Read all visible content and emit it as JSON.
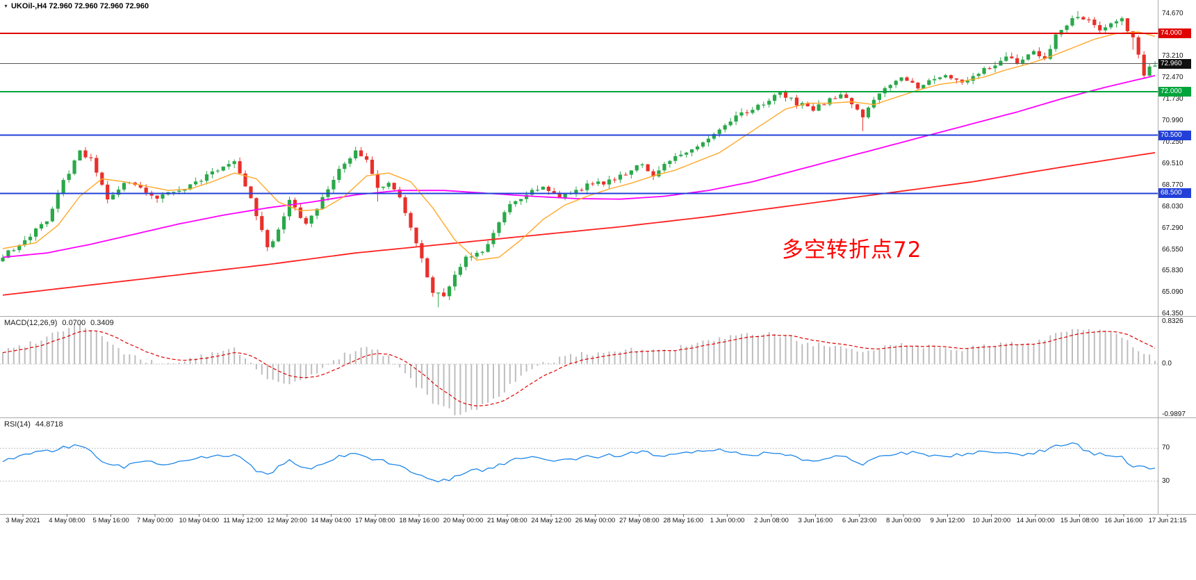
{
  "header": {
    "dropdown_icon": "chevron-down-icon",
    "title": "UKOil-,H4 72.960 72.960 72.960 72.960"
  },
  "annotation": {
    "text": "多空转折点72",
    "color": "#FF0000"
  },
  "time_axis": {
    "labels": [
      "3 May 2021",
      "4 May 08:00",
      "5 May 16:00",
      "7 May 00:00",
      "10 May 04:00",
      "11 May 12:00",
      "12 May 20:00",
      "14 May 04:00",
      "17 May 08:00",
      "18 May 16:00",
      "20 May 00:00",
      "21 May 08:00",
      "24 May 12:00",
      "26 May 00:00",
      "27 May 08:00",
      "28 May 16:00",
      "1 Jun 00:00",
      "2 Jun 08:00",
      "3 Jun 16:00",
      "6 Jun 23:00",
      "8 Jun 00:00",
      "9 Jun 12:00",
      "10 Jun 20:00",
      "14 Jun 00:00",
      "15 Jun 08:00",
      "16 Jun 16:00",
      "17 Jun 21:15"
    ]
  },
  "chart_data": [
    {
      "type": "candlestick",
      "title": "UKOil-,H4",
      "bars": 210,
      "ylim": [
        64.28,
        75.15
      ],
      "up_color": "#2AA84A",
      "down_color": "#E8302A",
      "y_axis_labels": [
        "74.670",
        "73.210",
        "72.470",
        "71.730",
        "70.990",
        "70.250",
        "69.510",
        "68.770",
        "68.030",
        "67.290",
        "66.550",
        "65.830",
        "65.090",
        "64.350"
      ],
      "levels": [
        {
          "price": 74.0,
          "color": "#E00000",
          "width": 2,
          "label": "74.000",
          "badge": "#E00000"
        },
        {
          "price": 72.96,
          "color": "#555555",
          "width": 1,
          "label": "72.960",
          "badge": "#111111"
        },
        {
          "price": 72.0,
          "color": "#00A43B",
          "width": 2,
          "label": "72.000",
          "badge": "#00A43B"
        },
        {
          "price": 70.5,
          "color": "#2240D8",
          "width": 2,
          "label": "70.500",
          "badge": "#2240D8"
        },
        {
          "price": 68.5,
          "color": "#2240D8",
          "width": 2,
          "label": "68.500",
          "badge": "#2240D8"
        }
      ],
      "close_anchors": [
        [
          0,
          66.35
        ],
        [
          4,
          66.9
        ],
        [
          8,
          67.6
        ],
        [
          11,
          68.9
        ],
        [
          14,
          69.9
        ],
        [
          16,
          69.65
        ],
        [
          19,
          68.35
        ],
        [
          22,
          68.85
        ],
        [
          25,
          68.7
        ],
        [
          28,
          68.35
        ],
        [
          32,
          68.6
        ],
        [
          36,
          69.0
        ],
        [
          40,
          69.35
        ],
        [
          42,
          69.65
        ],
        [
          45,
          68.3
        ],
        [
          48,
          66.6
        ],
        [
          50,
          67.2
        ],
        [
          52,
          68.35
        ],
        [
          55,
          67.4
        ],
        [
          58,
          68.35
        ],
        [
          61,
          69.3
        ],
        [
          64,
          69.95
        ],
        [
          66,
          69.6
        ],
        [
          68,
          68.75
        ],
        [
          70,
          68.85
        ],
        [
          72,
          68.4
        ],
        [
          74,
          67.3
        ],
        [
          76,
          66.25
        ],
        [
          78,
          65.1
        ],
        [
          80,
          64.95
        ],
        [
          82,
          65.7
        ],
        [
          84,
          66.35
        ],
        [
          87,
          66.5
        ],
        [
          90,
          67.5
        ],
        [
          92,
          68.2
        ],
        [
          95,
          68.45
        ],
        [
          98,
          68.75
        ],
        [
          101,
          68.35
        ],
        [
          104,
          68.6
        ],
        [
          107,
          68.85
        ],
        [
          110,
          68.9
        ],
        [
          113,
          69.15
        ],
        [
          116,
          69.55
        ],
        [
          118,
          69.1
        ],
        [
          120,
          69.5
        ],
        [
          123,
          69.9
        ],
        [
          126,
          70.1
        ],
        [
          128,
          70.45
        ],
        [
          131,
          70.9
        ],
        [
          134,
          71.25
        ],
        [
          136,
          71.35
        ],
        [
          139,
          71.7
        ],
        [
          141,
          71.95
        ],
        [
          144,
          71.6
        ],
        [
          147,
          71.4
        ],
        [
          150,
          71.75
        ],
        [
          152,
          71.9
        ],
        [
          154,
          71.6
        ],
        [
          156,
          71.05
        ],
        [
          158,
          71.7
        ],
        [
          160,
          72.2
        ],
        [
          163,
          72.45
        ],
        [
          166,
          72.15
        ],
        [
          168,
          72.35
        ],
        [
          171,
          72.6
        ],
        [
          174,
          72.3
        ],
        [
          176,
          72.55
        ],
        [
          179,
          72.85
        ],
        [
          182,
          73.15
        ],
        [
          184,
          73.0
        ],
        [
          187,
          73.35
        ],
        [
          189,
          73.15
        ],
        [
          191,
          73.9
        ],
        [
          193,
          74.35
        ],
        [
          195,
          74.6
        ],
        [
          197,
          74.45
        ],
        [
          199,
          74.1
        ],
        [
          201,
          74.35
        ],
        [
          203,
          74.45
        ],
        [
          205,
          73.8
        ],
        [
          206,
          73.2
        ],
        [
          207,
          72.55
        ],
        [
          208,
          72.9
        ],
        [
          209,
          72.96
        ]
      ],
      "wick_events": [
        [
          68,
          -0.45
        ],
        [
          79,
          -0.35
        ],
        [
          156,
          -0.4
        ],
        [
          195,
          0.07
        ],
        [
          205,
          -0.3
        ]
      ],
      "series": [
        {
          "name": "ma-slow-line",
          "color": "#FF2020",
          "width": 1.8,
          "anchors": [
            [
              0,
              65.0
            ],
            [
              16,
              65.35
            ],
            [
              32,
              65.7
            ],
            [
              48,
              66.05
            ],
            [
              64,
              66.45
            ],
            [
              80,
              66.75
            ],
            [
              96,
              67.05
            ],
            [
              112,
              67.35
            ],
            [
              128,
              67.7
            ],
            [
              144,
              68.1
            ],
            [
              160,
              68.5
            ],
            [
              176,
              68.9
            ],
            [
              192,
              69.4
            ],
            [
              209,
              69.9
            ]
          ]
        },
        {
          "name": "ma-mid-line",
          "color": "#FF00FF",
          "width": 1.8,
          "anchors": [
            [
              0,
              66.3
            ],
            [
              8,
              66.45
            ],
            [
              16,
              66.75
            ],
            [
              24,
              67.1
            ],
            [
              32,
              67.45
            ],
            [
              40,
              67.75
            ],
            [
              48,
              68.0
            ],
            [
              56,
              68.2
            ],
            [
              64,
              68.45
            ],
            [
              72,
              68.6
            ],
            [
              80,
              68.6
            ],
            [
              88,
              68.5
            ],
            [
              96,
              68.4
            ],
            [
              104,
              68.32
            ],
            [
              112,
              68.3
            ],
            [
              120,
              68.4
            ],
            [
              128,
              68.6
            ],
            [
              136,
              68.9
            ],
            [
              144,
              69.3
            ],
            [
              152,
              69.7
            ],
            [
              160,
              70.1
            ],
            [
              168,
              70.5
            ],
            [
              176,
              70.9
            ],
            [
              184,
              71.3
            ],
            [
              192,
              71.75
            ],
            [
              200,
              72.15
            ],
            [
              209,
              72.55
            ]
          ]
        },
        {
          "name": "ma-fast-line",
          "color": "#FFA828",
          "width": 1.4,
          "anchors": [
            [
              0,
              66.6
            ],
            [
              6,
              66.8
            ],
            [
              10,
              67.4
            ],
            [
              14,
              68.4
            ],
            [
              18,
              69.0
            ],
            [
              22,
              68.9
            ],
            [
              26,
              68.75
            ],
            [
              30,
              68.6
            ],
            [
              34,
              68.65
            ],
            [
              38,
              68.9
            ],
            [
              42,
              69.2
            ],
            [
              46,
              69.0
            ],
            [
              50,
              68.2
            ],
            [
              54,
              67.9
            ],
            [
              58,
              67.95
            ],
            [
              62,
              68.4
            ],
            [
              66,
              69.1
            ],
            [
              70,
              69.2
            ],
            [
              74,
              68.9
            ],
            [
              78,
              68.0
            ],
            [
              82,
              66.9
            ],
            [
              86,
              66.2
            ],
            [
              90,
              66.3
            ],
            [
              94,
              66.9
            ],
            [
              98,
              67.6
            ],
            [
              102,
              68.1
            ],
            [
              106,
              68.4
            ],
            [
              110,
              68.65
            ],
            [
              114,
              68.85
            ],
            [
              118,
              69.1
            ],
            [
              122,
              69.3
            ],
            [
              126,
              69.6
            ],
            [
              130,
              69.9
            ],
            [
              134,
              70.4
            ],
            [
              138,
              70.9
            ],
            [
              142,
              71.4
            ],
            [
              146,
              71.6
            ],
            [
              150,
              71.6
            ],
            [
              154,
              71.65
            ],
            [
              158,
              71.55
            ],
            [
              162,
              71.8
            ],
            [
              166,
              72.05
            ],
            [
              170,
              72.25
            ],
            [
              174,
              72.35
            ],
            [
              178,
              72.5
            ],
            [
              182,
              72.75
            ],
            [
              186,
              72.95
            ],
            [
              190,
              73.2
            ],
            [
              194,
              73.5
            ],
            [
              198,
              73.8
            ],
            [
              202,
              74.0
            ],
            [
              206,
              74.05
            ],
            [
              209,
              73.9
            ]
          ]
        }
      ]
    },
    {
      "type": "bar",
      "label": "MACD(12,26,9)",
      "values_text": [
        "0.0700",
        "0.3409"
      ],
      "ylim": [
        -1.05,
        0.93
      ],
      "axis_labels": [
        "0.8326",
        "0.0",
        "-0.9897"
      ],
      "hist_color": "#BDBDBD",
      "signal_color": "#E00000",
      "macd_anchors": [
        [
          0,
          0.25
        ],
        [
          6,
          0.45
        ],
        [
          10,
          0.65
        ],
        [
          14,
          0.8
        ],
        [
          18,
          0.55
        ],
        [
          22,
          0.2
        ],
        [
          26,
          0.05
        ],
        [
          30,
          0.0
        ],
        [
          34,
          0.1
        ],
        [
          38,
          0.2
        ],
        [
          42,
          0.3
        ],
        [
          46,
          -0.1
        ],
        [
          50,
          -0.4
        ],
        [
          54,
          -0.35
        ],
        [
          58,
          -0.1
        ],
        [
          62,
          0.2
        ],
        [
          66,
          0.35
        ],
        [
          70,
          0.15
        ],
        [
          74,
          -0.3
        ],
        [
          78,
          -0.75
        ],
        [
          82,
          -0.97
        ],
        [
          86,
          -0.9
        ],
        [
          90,
          -0.6
        ],
        [
          94,
          -0.25
        ],
        [
          98,
          0.0
        ],
        [
          102,
          0.15
        ],
        [
          106,
          0.2
        ],
        [
          110,
          0.25
        ],
        [
          114,
          0.3
        ],
        [
          118,
          0.25
        ],
        [
          122,
          0.3
        ],
        [
          126,
          0.4
        ],
        [
          130,
          0.5
        ],
        [
          134,
          0.55
        ],
        [
          138,
          0.6
        ],
        [
          142,
          0.55
        ],
        [
          146,
          0.4
        ],
        [
          150,
          0.35
        ],
        [
          154,
          0.25
        ],
        [
          158,
          0.3
        ],
        [
          162,
          0.4
        ],
        [
          166,
          0.35
        ],
        [
          170,
          0.35
        ],
        [
          174,
          0.3
        ],
        [
          178,
          0.35
        ],
        [
          182,
          0.4
        ],
        [
          186,
          0.4
        ],
        [
          190,
          0.55
        ],
        [
          194,
          0.7
        ],
        [
          198,
          0.65
        ],
        [
          202,
          0.6
        ],
        [
          205,
          0.35
        ],
        [
          209,
          0.07
        ]
      ]
    },
    {
      "type": "line",
      "label": "RSI(14)",
      "value_text": "44.8718",
      "ylim": [
        0,
        100
      ],
      "levels": [
        70,
        30
      ],
      "axis_labels": [
        "70",
        "30"
      ],
      "line_color": "#1E86E8",
      "anchors": [
        [
          0,
          55
        ],
        [
          4,
          62
        ],
        [
          8,
          66
        ],
        [
          12,
          72
        ],
        [
          14,
          74
        ],
        [
          18,
          55
        ],
        [
          22,
          48
        ],
        [
          26,
          55
        ],
        [
          30,
          50
        ],
        [
          34,
          57
        ],
        [
          38,
          60
        ],
        [
          42,
          63
        ],
        [
          46,
          42
        ],
        [
          48,
          37
        ],
        [
          52,
          55
        ],
        [
          56,
          44
        ],
        [
          60,
          58
        ],
        [
          64,
          65
        ],
        [
          68,
          55
        ],
        [
          72,
          50
        ],
        [
          76,
          35
        ],
        [
          80,
          30
        ],
        [
          84,
          42
        ],
        [
          88,
          44
        ],
        [
          92,
          55
        ],
        [
          96,
          58
        ],
        [
          100,
          55
        ],
        [
          104,
          58
        ],
        [
          108,
          60
        ],
        [
          112,
          62
        ],
        [
          116,
          65
        ],
        [
          120,
          60
        ],
        [
          124,
          64
        ],
        [
          128,
          68
        ],
        [
          132,
          66
        ],
        [
          136,
          62
        ],
        [
          140,
          66
        ],
        [
          144,
          58
        ],
        [
          148,
          55
        ],
        [
          152,
          62
        ],
        [
          156,
          50
        ],
        [
          160,
          63
        ],
        [
          164,
          65
        ],
        [
          168,
          62
        ],
        [
          172,
          60
        ],
        [
          176,
          64
        ],
        [
          180,
          66
        ],
        [
          184,
          62
        ],
        [
          188,
          66
        ],
        [
          192,
          74
        ],
        [
          194,
          78
        ],
        [
          197,
          65
        ],
        [
          200,
          62
        ],
        [
          203,
          58
        ],
        [
          205,
          48
        ],
        [
          209,
          45
        ]
      ]
    }
  ]
}
